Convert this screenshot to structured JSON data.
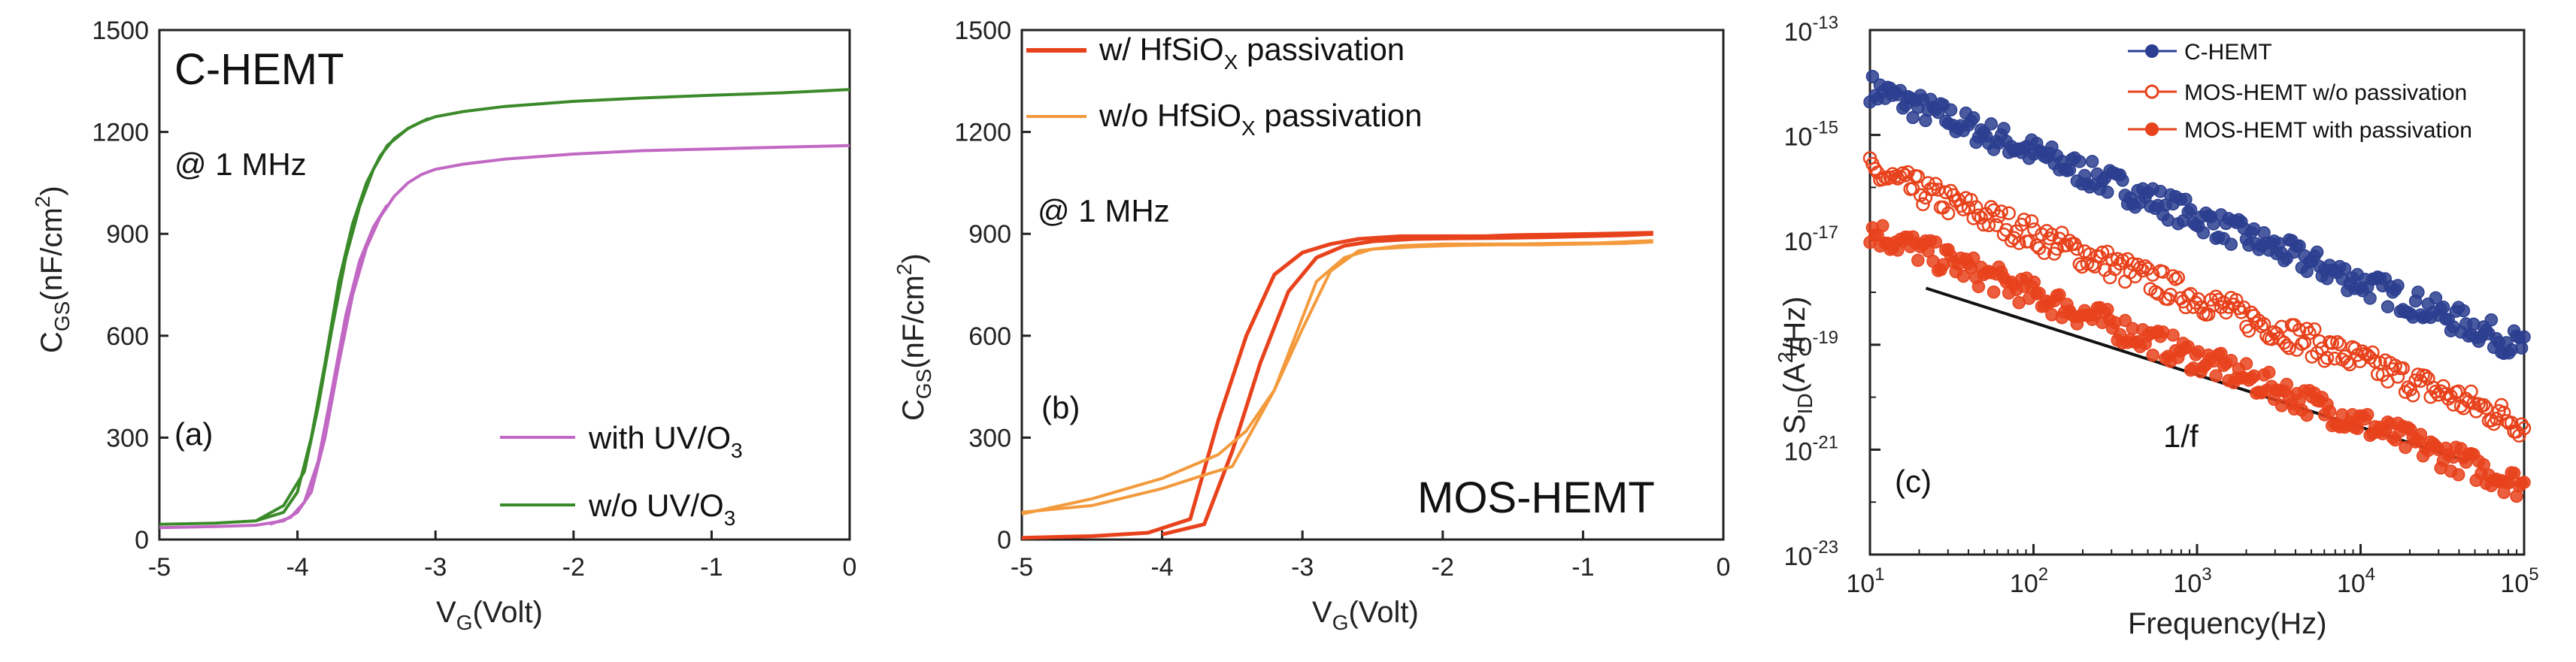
{
  "chart_data": [
    {
      "type": "line",
      "panel_label": "(a)",
      "title_text": "C-HEMT",
      "annotation": "@ 1 MHz",
      "xlabel": {
        "main": "V",
        "sub": "G",
        "rest": "(Volt)"
      },
      "ylabel": {
        "main": "C",
        "sub": "GS",
        "rest": "(nF/cm",
        "sup": "2",
        "end": ")"
      },
      "xlim": [
        -5,
        0
      ],
      "ylim": [
        0,
        1500
      ],
      "xticks": [
        -5,
        -4,
        -3,
        -2,
        -1,
        0
      ],
      "yticks": [
        0,
        300,
        600,
        900,
        1200,
        1500
      ],
      "series": [
        {
          "name": "with UV/O3",
          "legend_main": "with UV/O",
          "legend_sub": "3",
          "color": "#c168c4",
          "x": [
            -5,
            -4.6,
            -4.3,
            -4.1,
            -4.0,
            -3.9,
            -3.8,
            -3.7,
            -3.6,
            -3.5,
            -3.4,
            -3.3,
            -3.2,
            -3.1,
            -3.0,
            -2.8,
            -2.5,
            -2.0,
            -1.5,
            -1.0,
            -0.5,
            0
          ],
          "y": [
            35,
            38,
            42,
            55,
            80,
            140,
            300,
            520,
            720,
            860,
            950,
            1010,
            1050,
            1075,
            1090,
            1105,
            1120,
            1135,
            1145,
            1150,
            1155,
            1160
          ]
        },
        {
          "name": "with UV/O3 (return)",
          "color": "#c168c4",
          "x": [
            -4.2,
            -4.05,
            -3.95,
            -3.85,
            -3.75,
            -3.65,
            -3.55,
            -3.45,
            -3.35
          ],
          "y": [
            45,
            65,
            110,
            230,
            440,
            660,
            820,
            920,
            985
          ]
        },
        {
          "name": "w/o UV/O3",
          "legend_main": "w/o UV/O",
          "legend_sub": "3",
          "color": "#3b8a2a",
          "x": [
            -5,
            -4.6,
            -4.3,
            -4.1,
            -4.0,
            -3.9,
            -3.8,
            -3.7,
            -3.6,
            -3.5,
            -3.4,
            -3.3,
            -3.2,
            -3.1,
            -3.0,
            -2.8,
            -2.5,
            -2.0,
            -1.5,
            -1.0,
            -0.5,
            0
          ],
          "y": [
            45,
            48,
            55,
            80,
            140,
            300,
            520,
            760,
            930,
            1050,
            1130,
            1180,
            1210,
            1230,
            1245,
            1260,
            1275,
            1290,
            1300,
            1308,
            1315,
            1325
          ]
        },
        {
          "name": "w/o UV/O3 (return)",
          "color": "#3b8a2a",
          "x": [
            -4.3,
            -4.1,
            -3.95,
            -3.85,
            -3.75,
            -3.65,
            -3.55,
            -3.45,
            -3.35,
            -3.2,
            -3.05
          ],
          "y": [
            55,
            100,
            200,
            390,
            620,
            830,
            980,
            1090,
            1160,
            1210,
            1240
          ]
        }
      ]
    },
    {
      "type": "line",
      "panel_label": "(b)",
      "title_text": "MOS-HEMT",
      "annotation": "@ 1 MHz",
      "xlabel": {
        "main": "V",
        "sub": "G",
        "rest": "(Volt)"
      },
      "ylabel": {
        "main": "C",
        "sub": "GS",
        "rest": "(nF/cm",
        "sup": "2",
        "end": ")"
      },
      "xlim": [
        -5,
        0
      ],
      "ylim": [
        0,
        1500
      ],
      "xticks": [
        -5,
        -4,
        -3,
        -2,
        -1,
        0
      ],
      "yticks": [
        0,
        300,
        600,
        900,
        1200,
        1500
      ],
      "series": [
        {
          "name": "w/ HfSiOX passivation",
          "legend_main": "w/ HfSiO",
          "legend_sub": "X",
          "legend_rest": " passivation",
          "color": "#e8421c",
          "x": [
            -5,
            -4.5,
            -4.1,
            -3.8,
            -3.6,
            -3.4,
            -3.2,
            -3.0,
            -2.8,
            -2.6,
            -2.3,
            -2.0,
            -1.7,
            -1.5,
            -1.2,
            -0.9,
            -0.5
          ],
          "y": [
            5,
            10,
            20,
            60,
            350,
            600,
            780,
            845,
            870,
            885,
            893,
            893,
            893,
            896,
            898,
            900,
            903
          ]
        },
        {
          "name": "w/ HfSiOX passivation (return)",
          "color": "#e8421c",
          "x": [
            -4.0,
            -3.7,
            -3.5,
            -3.3,
            -3.1,
            -2.9,
            -2.7,
            -2.5,
            -2.2,
            -1.9,
            -1.6,
            -1.3,
            -1.0,
            -0.7,
            -0.5
          ],
          "y": [
            15,
            45,
            260,
            520,
            730,
            830,
            865,
            878,
            885,
            887,
            888,
            890,
            893,
            896,
            900
          ]
        },
        {
          "name": "w/o HfSiOX passivation",
          "legend_main": "w/o HfSiO",
          "legend_sub": "X",
          "legend_rest": " passivation",
          "color": "#f39a3c",
          "x": [
            -5,
            -4.5,
            -4.0,
            -3.6,
            -3.4,
            -3.2,
            -3.0,
            -2.8,
            -2.6,
            -2.3,
            -2.0,
            -1.7,
            -1.5,
            -1.2,
            -0.9,
            -0.5
          ],
          "y": [
            75,
            120,
            180,
            250,
            320,
            440,
            620,
            790,
            850,
            865,
            870,
            870,
            870,
            872,
            873,
            880
          ]
        },
        {
          "name": "w/o HfSiOX passivation (return)",
          "color": "#f39a3c",
          "x": [
            -5,
            -4.5,
            -4.0,
            -3.7,
            -3.5,
            -3.2,
            -2.9,
            -2.7,
            -2.5,
            -2.2,
            -1.9,
            -1.6,
            -1.3,
            -1.0,
            -0.7,
            -0.5
          ],
          "y": [
            80,
            100,
            150,
            190,
            215,
            440,
            760,
            830,
            855,
            862,
            866,
            868,
            868,
            870,
            872,
            876
          ]
        }
      ]
    },
    {
      "type": "scatter",
      "panel_label": "(c)",
      "xscale": "log",
      "yscale": "log",
      "xlabel": "Frequency(Hz)",
      "ylabel": {
        "main": "S",
        "sub": "ID",
        "rest": "(A",
        "sup": "2",
        "end": "/Hz)"
      },
      "xlim": [
        10,
        100000
      ],
      "ylim": [
        1e-23,
        1e-13
      ],
      "xtick_exponents": [
        1,
        2,
        3,
        4,
        5
      ],
      "ytick_exponents": [
        -23,
        -21,
        -19,
        -17,
        -15,
        -13
      ],
      "annotation": "1/f",
      "reference_line": {
        "x": [
          22,
          45000
        ],
        "y": [
          1.2e-18,
          6e-22
        ]
      },
      "series": [
        {
          "name": "C-HEMT",
          "marker": "filled-circle",
          "color": "#2c3e8f",
          "start": {
            "x": 10,
            "y": 8e-15
          },
          "end": {
            "x": 100000,
            "y": 9e-20
          }
        },
        {
          "name": "MOS-HEMT w/o passivation",
          "marker": "open-circle",
          "color": "#e8421c",
          "start": {
            "x": 10,
            "y": 2e-16
          },
          "end": {
            "x": 100000,
            "y": 3e-21
          }
        },
        {
          "name": "MOS-HEMT with passivation",
          "marker": "filled-circle",
          "color": "#e8421c",
          "start": {
            "x": 10,
            "y": 1.5e-17
          },
          "end": {
            "x": 100000,
            "y": 2e-22
          }
        }
      ]
    }
  ]
}
